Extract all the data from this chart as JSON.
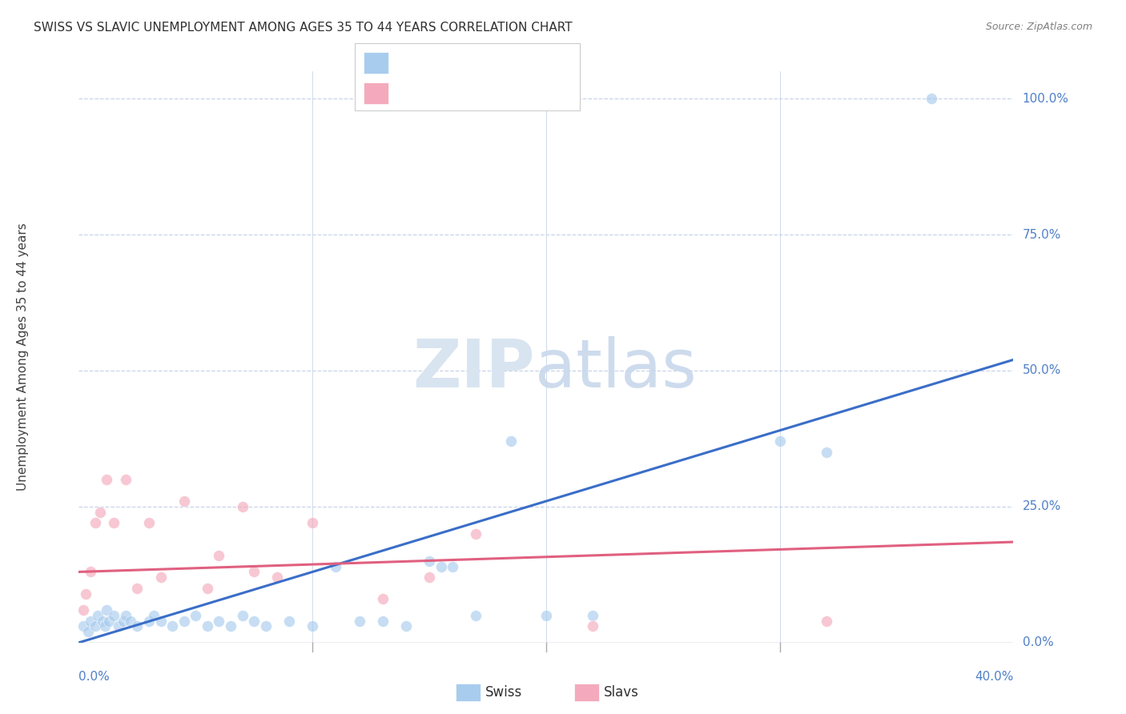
{
  "title": "SWISS VS SLAVIC UNEMPLOYMENT AMONG AGES 35 TO 44 YEARS CORRELATION CHART",
  "source": "Source: ZipAtlas.com",
  "ylabel": "Unemployment Among Ages 35 to 44 years",
  "swiss_color": "#A8CCEE",
  "slavs_color": "#F4AABC",
  "swiss_line_color": "#3A6EC8",
  "slavs_line_color": "#E06080",
  "legend_text_color": "#3A6EC8",
  "title_color": "#303030",
  "source_color": "#808080",
  "ylabel_color": "#404040",
  "ytick_color": "#5080C8",
  "xtick_color": "#5080C8",
  "grid_color": "#C8D4E8",
  "background_color": "#FFFFFF",
  "xmin": 0.0,
  "xmax": 40.0,
  "ymin": 0.0,
  "ymax": 105.0,
  "ytick_vals": [
    0,
    25,
    50,
    75,
    100
  ],
  "ytick_labels": [
    "0.0%",
    "25.0%",
    "50.0%",
    "75.0%",
    "100.0%"
  ],
  "xtick_vals": [
    0,
    10,
    20,
    30,
    40
  ],
  "xtick_labels": [
    "0.0%",
    "",
    "",
    "",
    "40.0%"
  ],
  "swiss_trend_x": [
    0,
    40
  ],
  "swiss_trend_y": [
    0.0,
    52.0
  ],
  "slavs_trend_x": [
    0,
    40
  ],
  "slavs_trend_y": [
    13.0,
    18.5
  ],
  "swiss_x": [
    0.2,
    0.4,
    0.5,
    0.7,
    0.8,
    1.0,
    1.1,
    1.2,
    1.3,
    1.5,
    1.7,
    1.9,
    2.0,
    2.2,
    2.5,
    3.0,
    3.2,
    3.5,
    4.0,
    4.5,
    5.0,
    5.5,
    6.0,
    6.5,
    7.0,
    7.5,
    8.0,
    9.0,
    10.0,
    11.0,
    12.0,
    13.0,
    14.0,
    15.0,
    15.5,
    16.0,
    17.0,
    18.5,
    20.0,
    22.0,
    30.0,
    32.0,
    36.5
  ],
  "swiss_y": [
    3,
    2,
    4,
    3,
    5,
    4,
    3,
    6,
    4,
    5,
    3,
    4,
    5,
    4,
    3,
    4,
    5,
    4,
    3,
    4,
    5,
    3,
    4,
    3,
    5,
    4,
    3,
    4,
    3,
    14,
    4,
    4,
    3,
    15,
    14,
    14,
    5,
    37,
    5,
    5,
    37,
    35,
    100
  ],
  "slavs_x": [
    0.2,
    0.3,
    0.5,
    0.7,
    0.9,
    1.2,
    1.5,
    2.0,
    2.5,
    3.0,
    3.5,
    4.5,
    5.5,
    6.0,
    7.0,
    7.5,
    8.5,
    10.0,
    13.0,
    15.0,
    17.0,
    22.0,
    32.0
  ],
  "slavs_y": [
    6,
    9,
    13,
    22,
    24,
    30,
    22,
    30,
    10,
    22,
    12,
    26,
    10,
    16,
    25,
    13,
    12,
    22,
    8,
    12,
    20,
    3,
    4
  ],
  "marker_size": 10,
  "marker_alpha": 0.65,
  "watermark_zip_color": "#D8E4F0",
  "watermark_atlas_color": "#C8D8EC"
}
